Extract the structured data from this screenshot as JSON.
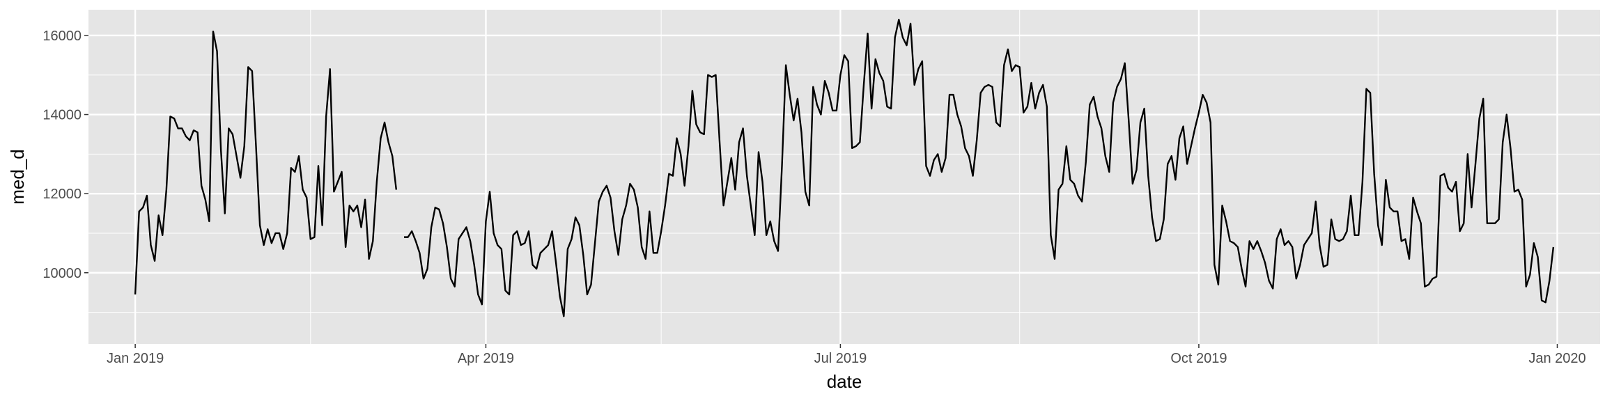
{
  "chart_data": {
    "type": "line",
    "xlabel": "date",
    "ylabel": "med_d",
    "xlim": [
      "2018-12-20",
      "2020-01-12"
    ],
    "ylim": [
      8200,
      16650
    ],
    "grid": true,
    "colors": {
      "panel": "#e5e5e5",
      "grid_major": "#ffffff",
      "line": "#000000",
      "tick_label": "#4d4d4d"
    },
    "x_ticks": [
      {
        "date": "2019-01-01",
        "label": "Jan 2019"
      },
      {
        "date": "2019-04-01",
        "label": "Apr 2019"
      },
      {
        "date": "2019-07-01",
        "label": "Jul 2019"
      },
      {
        "date": "2019-10-01",
        "label": "Oct 2019"
      },
      {
        "date": "2020-01-01",
        "label": "Jan 2020"
      }
    ],
    "x_minor_ticks": [
      "2019-02-15",
      "2019-05-16",
      "2019-08-16",
      "2019-11-16"
    ],
    "y_ticks": [
      {
        "value": 10000,
        "label": "10000"
      },
      {
        "value": 12000,
        "label": "12000"
      },
      {
        "value": 14000,
        "label": "14000"
      },
      {
        "value": 16000,
        "label": "16000"
      }
    ],
    "y_minor_ticks": [
      9000,
      11000,
      13000,
      15000
    ],
    "segments": [
      {
        "start": "2019-01-01",
        "values": [
          9450,
          11550,
          11650,
          11950,
          10700,
          10300,
          11450,
          10950,
          12100,
          13950,
          13900,
          13650,
          13650,
          13450,
          13350,
          13600,
          13550,
          12200,
          11850,
          11300,
          16100,
          15600,
          13100,
          11500,
          13650,
          13500,
          12950,
          12400,
          13200,
          15200,
          15100,
          13200,
          11200,
          10700,
          11100,
          10750,
          11000,
          11000,
          10600,
          11000,
          12650,
          12550,
          12950,
          12100,
          11900,
          10850,
          10900,
          12700,
          11200,
          13950,
          15150,
          12050,
          12300,
          12550,
          10650,
          11700,
          11550,
          11700,
          11150,
          11850,
          10350,
          10800,
          12300,
          13400,
          13800,
          13300,
          12950,
          12100
        ]
      },
      {
        "start": "2019-03-11",
        "values": [
          10900,
          10900,
          11050,
          10800,
          10500,
          9850,
          10100,
          11150,
          11650,
          11600,
          11250,
          10650,
          9850,
          9650,
          10850,
          11000,
          11150,
          10800,
          10200,
          9450,
          9200,
          11300,
          12050,
          11000,
          10700,
          10600,
          9550,
          9450,
          10950,
          11050,
          10700,
          10750,
          11050,
          10200,
          10100,
          10500,
          10600,
          10700,
          11050,
          10250,
          9400,
          8900,
          10600,
          10850,
          11400,
          11200,
          10450,
          9450,
          9700,
          10750,
          11800,
          12050,
          12200,
          11900,
          11050,
          10450,
          11350,
          11700,
          12250,
          12100,
          11650,
          10650,
          10350,
          11550,
          10500,
          10500,
          11050,
          11700,
          12500,
          12450,
          13400,
          13000,
          12200,
          13200,
          14600,
          13750,
          13550,
          13500,
          15000,
          14950,
          15000,
          13300,
          11700,
          12300,
          12900,
          12100,
          13300,
          13650,
          12450,
          11700,
          10950,
          13050,
          12300,
          10950,
          11300,
          10800,
          10550,
          12700,
          15250,
          14500,
          13850,
          14400,
          13550,
          12050,
          11700,
          14700,
          14250,
          14000,
          14850,
          14550,
          14100,
          14100,
          15000,
          15500,
          15350,
          13150,
          13200,
          13300,
          14750,
          16050,
          14150,
          15400,
          15050,
          14850,
          14200,
          14150,
          15950,
          16400,
          15950,
          15750,
          16300,
          14750,
          15150,
          15350,
          12700,
          12450,
          12850,
          13000,
          12550,
          12900,
          14500,
          14500,
          14000,
          13700,
          13150,
          12950,
          12450,
          13350,
          14550,
          14700,
          14750,
          14700,
          13800,
          13700,
          15250,
          15650,
          15100,
          15250,
          15200,
          14050,
          14200,
          14800,
          14150,
          14550,
          14750,
          14200,
          10950,
          10350,
          12100,
          12250,
          13200,
          12350,
          12250,
          11950,
          11800,
          12800,
          14250,
          14450,
          13950,
          13650,
          12950,
          12550,
          14300,
          14700,
          14900,
          15300,
          13850,
          12250,
          12600,
          13800,
          14150,
          12450,
          11400,
          10800,
          10850,
          11350,
          12750,
          12950,
          12350,
          13400,
          13700,
          12750,
          13200,
          13650,
          14050,
          14500,
          14300,
          13800,
          10200,
          9700,
          11700,
          11300,
          10800,
          10750,
          10650,
          10100,
          9650,
          10800,
          10600,
          10800,
          10550,
          10250,
          9800,
          9600,
          10850,
          11100,
          10700,
          10800,
          10650,
          9850,
          10200,
          10700,
          10850,
          11000,
          11800,
          10700,
          10150,
          10200,
          11350,
          10850,
          10800,
          10850,
          11050,
          11950,
          10950,
          10950,
          12300,
          14650,
          14550,
          12500,
          11200,
          10700,
          12350,
          11650,
          11550,
          11550,
          10800,
          10850,
          10350,
          11900,
          11550,
          11250,
          9650,
          9700,
          9850,
          9900,
          12450,
          12500,
          12150,
          12050,
          12300,
          11050,
          11250,
          13000,
          11650,
          12750,
          13900,
          14400,
          11250,
          11250,
          11250,
          11350,
          13300,
          14000,
          13150,
          12050,
          12100,
          11850,
          9650,
          9950,
          10750,
          10400,
          9300,
          9250,
          9800,
          10650
        ]
      }
    ]
  }
}
